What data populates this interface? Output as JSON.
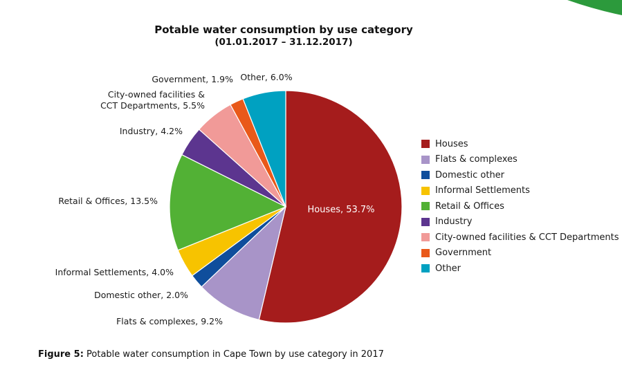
{
  "chart_data": {
    "type": "pie",
    "title": "Potable water consumption by use category",
    "subtitle": "(01.01.2017 – 31.12.2017)",
    "slices": [
      {
        "name": "Houses",
        "value": 53.7,
        "color": "#a51c1c",
        "label": "Houses, 53.7%"
      },
      {
        "name": "Flats & complexes",
        "value": 9.2,
        "color": "#a894c8",
        "label": "Flats & complexes, 9.2%"
      },
      {
        "name": "Domestic other",
        "value": 2.0,
        "color": "#0f4e9c",
        "label": "Domestic other, 2.0%"
      },
      {
        "name": "Informal Settlements",
        "value": 4.0,
        "color": "#f7c300",
        "label": "Informal Settlements, 4.0%"
      },
      {
        "name": "Retail & Offices",
        "value": 13.5,
        "color": "#52b135",
        "label": "Retail & Offices, 13.5%"
      },
      {
        "name": "Industry",
        "value": 4.2,
        "color": "#5c358f",
        "label": "Industry, 4.2%"
      },
      {
        "name": "City-owned facilities & CCT Departments",
        "value": 5.5,
        "color": "#f19a98",
        "label": "City-owned facilities & CCT Departments, 5.5%",
        "label_lines": [
          "City-owned facilities &",
          "CCT Departments, 5.5%"
        ]
      },
      {
        "name": "Government",
        "value": 1.9,
        "color": "#e9591a",
        "label": "Government, 1.9%"
      },
      {
        "name": "Other",
        "value": 6.0,
        "color": "#00a1c1",
        "label": "Other, 6.0%"
      }
    ],
    "legend_position": "right"
  },
  "caption": {
    "prefix": "Figure 5:",
    "text": " Potable water consumption in Cape Town by use category in 2017"
  },
  "decoration": {
    "corner_color": "#2c9a3c"
  }
}
